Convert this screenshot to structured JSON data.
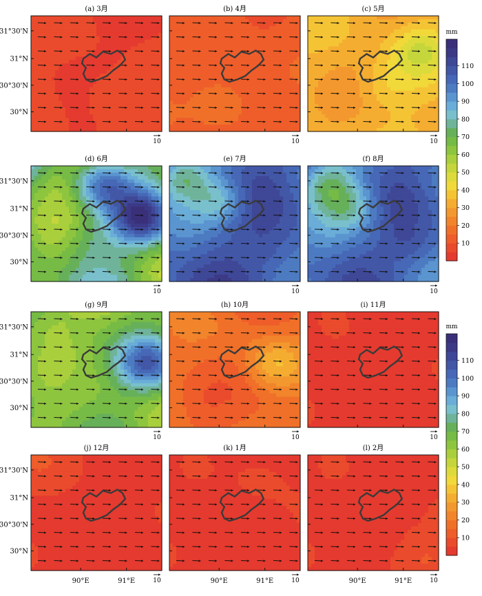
{
  "chart_data": {
    "type": "heatmap",
    "description_units": "monthly precipitation (mm) shaded, with wind vectors",
    "panels": [
      {
        "label": "(a) 3月",
        "base": 5,
        "variation": 8,
        "hi": [
          {
            "x": 0.2,
            "y": 0.15,
            "v": 3
          },
          {
            "x": 0.6,
            "y": 0.7,
            "v": 13
          }
        ]
      },
      {
        "label": "(b) 4月",
        "base": 12,
        "variation": 6,
        "hi": [
          {
            "x": 0.4,
            "y": 0.75,
            "v": 22
          },
          {
            "x": 0.1,
            "y": 0.1,
            "v": 10
          }
        ]
      },
      {
        "label": "(c) 5月",
        "base": 33,
        "variation": 10,
        "hi": [
          {
            "x": 0.85,
            "y": 0.3,
            "v": 48
          },
          {
            "x": 0.6,
            "y": 0.6,
            "v": 42
          },
          {
            "x": 0.1,
            "y": 0.75,
            "v": 28
          }
        ]
      },
      {
        "label": "(d) 6月",
        "base": 70,
        "variation": 30,
        "hi": [
          {
            "x": 0.15,
            "y": 0.15,
            "v": 58
          },
          {
            "x": 0.85,
            "y": 0.45,
            "v": 108
          },
          {
            "x": 0.55,
            "y": 0.15,
            "v": 100
          },
          {
            "x": 0.4,
            "y": 0.65,
            "v": 82
          }
        ]
      },
      {
        "label": "(e) 7月",
        "base": 105,
        "variation": 20,
        "hi": [
          {
            "x": 0.1,
            "y": 0.1,
            "v": 78
          },
          {
            "x": 0.4,
            "y": 0.3,
            "v": 82
          },
          {
            "x": 0.8,
            "y": 0.75,
            "v": 112
          }
        ]
      },
      {
        "label": "(f) 8月",
        "base": 102,
        "variation": 20,
        "hi": [
          {
            "x": 0.15,
            "y": 0.15,
            "v": 78
          },
          {
            "x": 0.35,
            "y": 0.35,
            "v": 82
          },
          {
            "x": 0.8,
            "y": 0.7,
            "v": 112
          }
        ]
      },
      {
        "label": "(g) 9月",
        "base": 65,
        "variation": 20,
        "hi": [
          {
            "x": 0.1,
            "y": 0.1,
            "v": 55
          },
          {
            "x": 0.9,
            "y": 0.45,
            "v": 98
          },
          {
            "x": 0.3,
            "y": 0.6,
            "v": 72
          }
        ]
      },
      {
        "label": "(h) 10月",
        "base": 16,
        "variation": 10,
        "hi": [
          {
            "x": 0.8,
            "y": 0.45,
            "v": 32
          },
          {
            "x": 0.2,
            "y": 0.8,
            "v": 12
          },
          {
            "x": 0.5,
            "y": 0.2,
            "v": 18
          }
        ]
      },
      {
        "label": "(i) 11月",
        "base": 4,
        "variation": 2,
        "hi": [
          {
            "x": 0.5,
            "y": 0.5,
            "v": 5
          }
        ]
      },
      {
        "label": "(j) 12月",
        "base": 4,
        "variation": 2,
        "hi": [
          {
            "x": 0.05,
            "y": 0.05,
            "v": 10
          }
        ]
      },
      {
        "label": "(k) 1月",
        "base": 4,
        "variation": 2,
        "hi": [
          {
            "x": 0.7,
            "y": 0.2,
            "v": 6
          }
        ]
      },
      {
        "label": "(l) 2月",
        "base": 4,
        "variation": 2,
        "hi": [
          {
            "x": 0.9,
            "y": 0.9,
            "v": 10
          }
        ]
      }
    ],
    "colorbar": {
      "unit": "mm",
      "levels": [
        0,
        5,
        10,
        15,
        20,
        25,
        30,
        35,
        40,
        45,
        50,
        55,
        60,
        65,
        70,
        75,
        80,
        85,
        90,
        95,
        100,
        105,
        110,
        115,
        120
      ],
      "tick_labels": [
        "10",
        "20",
        "30",
        "40",
        "50",
        "60",
        "70",
        "80",
        "90",
        "100",
        "110"
      ],
      "colors": [
        "#e53a2f",
        "#ea4b2c",
        "#ee5d2a",
        "#f07029",
        "#f2842b",
        "#f3982e",
        "#f5ad31",
        "#f5c435",
        "#f1d93a",
        "#dddb3b",
        "#c4d63b",
        "#a9cf3c",
        "#8ec53f",
        "#76bb45",
        "#67b05a",
        "#6fb39a",
        "#79c0cc",
        "#6aadd8",
        "#5a95d0",
        "#4d7bc2",
        "#4668b6",
        "#4357a7",
        "#3f4797",
        "#3c3a86",
        "#3a307a"
      ]
    },
    "y_tick_labels": [
      "31°30'N",
      "31°N",
      "30°30'N",
      "30°N"
    ],
    "x_tick_labels": [
      "90°E",
      "91°E"
    ],
    "vector_reference_label": "10"
  }
}
